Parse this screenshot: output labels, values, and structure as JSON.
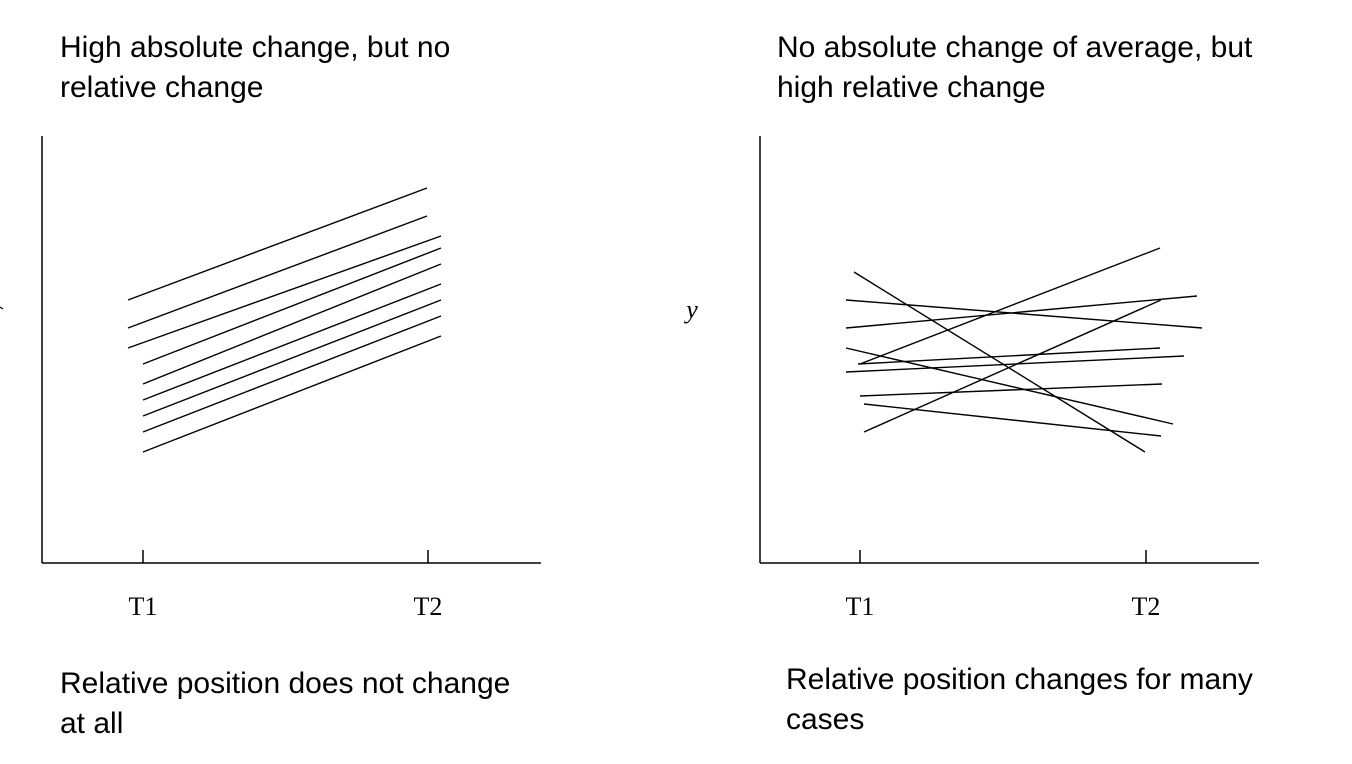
{
  "panels": [
    {
      "title_lines": [
        "High absolute change, but no",
        "relative change"
      ],
      "caption_lines": [
        "Relative position does not change",
        "at all"
      ]
    },
    {
      "title_lines": [
        "No absolute change of average, but",
        "high relative change"
      ],
      "caption_lines": [
        "Relative position changes for many",
        "cases"
      ]
    }
  ],
  "chart_data": [
    {
      "type": "line",
      "title": "High absolute change, but no relative change",
      "subtitle": "Relative position does not change at all",
      "categories": [
        "T1",
        "T2"
      ],
      "xlabel": "",
      "ylabel": "",
      "ylim": [
        0,
        100
      ],
      "grid": false,
      "legend": "none",
      "color": "#000000",
      "series": [
        {
          "values": [
            62,
            90
          ]
        },
        {
          "values": [
            55,
            83
          ]
        },
        {
          "values": [
            50,
            78
          ]
        },
        {
          "values": [
            46,
            75
          ]
        },
        {
          "values": [
            41,
            71
          ]
        },
        {
          "values": [
            37,
            66
          ]
        },
        {
          "values": [
            33,
            62
          ]
        },
        {
          "values": [
            29,
            58
          ]
        },
        {
          "values": [
            24,
            53
          ]
        }
      ]
    },
    {
      "type": "line",
      "title": "No absolute change of average, but high relative change",
      "subtitle": "Relative position changes for many cases",
      "categories": [
        "T1",
        "T2"
      ],
      "xlabel": "",
      "ylabel": "y",
      "ylim": [
        0,
        100
      ],
      "grid": false,
      "legend": "none",
      "color": "#000000",
      "series": [
        {
          "values": [
            69,
            24
          ]
        },
        {
          "values": [
            62,
            55
          ]
        },
        {
          "values": [
            55,
            63
          ]
        },
        {
          "values": [
            50,
            31
          ]
        },
        {
          "values": [
            46,
            50
          ]
        },
        {
          "values": [
            44,
            48
          ]
        },
        {
          "values": [
            46,
            75
          ]
        },
        {
          "values": [
            38,
            41
          ]
        },
        {
          "values": [
            36,
            28
          ]
        },
        {
          "values": [
            29,
            62
          ]
        }
      ]
    }
  ]
}
